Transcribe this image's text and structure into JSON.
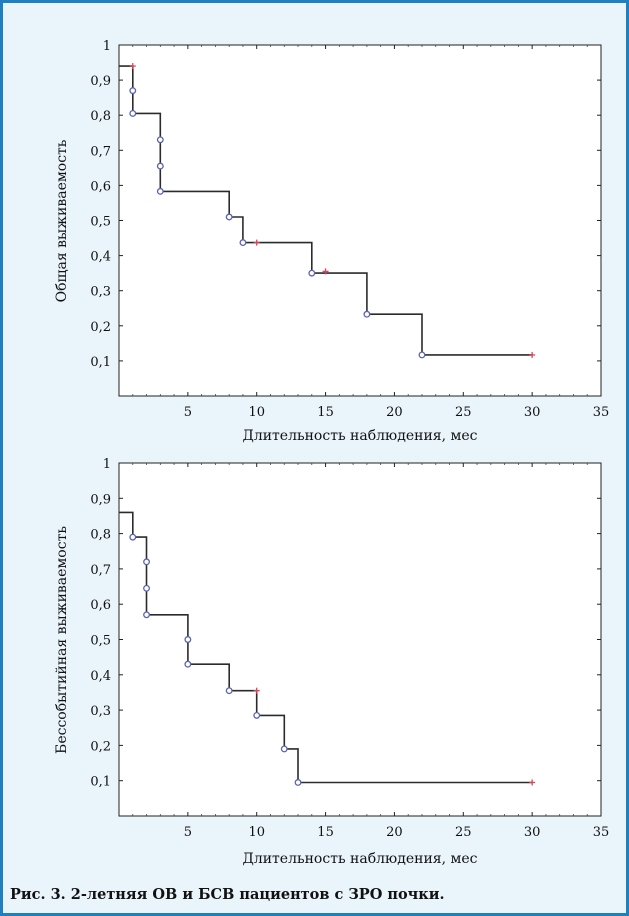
{
  "caption": "Рис. 3. 2-летняя ОВ и БСВ пациентов с ЗРО почки.",
  "colors": {
    "background": "#e9f4fb",
    "border": "#1f7fbf",
    "line": "#2b2b2b",
    "event_marker": "#5a63b0",
    "censored_marker": "#e0405a"
  },
  "chart_data": [
    {
      "type": "line",
      "subtype": "kaplan-meier-step",
      "xlabel": "Длительность наблюдения, мес",
      "ylabel": "Общая выживаемость",
      "xlim": [
        0,
        35
      ],
      "ylim": [
        0,
        1
      ],
      "x_ticks": [
        "5",
        "10",
        "15",
        "20",
        "25",
        "30",
        "35"
      ],
      "y_ticks": [
        "0,1",
        "0,2",
        "0,3",
        "0,4",
        "0,5",
        "0,6",
        "0,7",
        "0,8",
        "0,9",
        "1"
      ],
      "grid": false,
      "series": [
        {
          "steps": [
            [
              0,
              0.94
            ],
            [
              1,
              0.94
            ],
            [
              1,
              0.805
            ],
            [
              3,
              0.805
            ],
            [
              3,
              0.583
            ],
            [
              8,
              0.583
            ],
            [
              8,
              0.51
            ],
            [
              9,
              0.51
            ],
            [
              9,
              0.437
            ],
            [
              14,
              0.437
            ],
            [
              14,
              0.35
            ],
            [
              18,
              0.35
            ],
            [
              18,
              0.233
            ],
            [
              22,
              0.233
            ],
            [
              22,
              0.117
            ],
            [
              30,
              0.117
            ]
          ],
          "events": [
            [
              1,
              0.87
            ],
            [
              1,
              0.805
            ],
            [
              3,
              0.73
            ],
            [
              3,
              0.655
            ],
            [
              3,
              0.583
            ],
            [
              8,
              0.51
            ],
            [
              9,
              0.437
            ],
            [
              14,
              0.35
            ],
            [
              18,
              0.233
            ],
            [
              22,
              0.117
            ]
          ],
          "censored": [
            [
              1,
              0.94
            ],
            [
              10,
              0.437
            ],
            [
              15,
              0.355
            ],
            [
              30,
              0.117
            ]
          ]
        }
      ]
    },
    {
      "type": "line",
      "subtype": "kaplan-meier-step",
      "xlabel": "Длительность наблюдения, мес",
      "ylabel": "Бессобытийная  выживаемость",
      "xlim": [
        0,
        35
      ],
      "ylim": [
        0,
        1
      ],
      "x_ticks": [
        "5",
        "10",
        "15",
        "20",
        "25",
        "30",
        "35"
      ],
      "y_ticks": [
        "0,1",
        "0,2",
        "0,3",
        "0,4",
        "0,5",
        "0,6",
        "0,7",
        "0,8",
        "0,9",
        "1"
      ],
      "grid": false,
      "series": [
        {
          "steps": [
            [
              0,
              0.86
            ],
            [
              1,
              0.86
            ],
            [
              1,
              0.79
            ],
            [
              2,
              0.79
            ],
            [
              2,
              0.57
            ],
            [
              5,
              0.57
            ],
            [
              5,
              0.43
            ],
            [
              8,
              0.43
            ],
            [
              8,
              0.355
            ],
            [
              10,
              0.355
            ],
            [
              10,
              0.285
            ],
            [
              12,
              0.285
            ],
            [
              12,
              0.19
            ],
            [
              13,
              0.19
            ],
            [
              13,
              0.095
            ],
            [
              30,
              0.095
            ]
          ],
          "events": [
            [
              1,
              0.79
            ],
            [
              2,
              0.72
            ],
            [
              2,
              0.645
            ],
            [
              2,
              0.57
            ],
            [
              5,
              0.5
            ],
            [
              5,
              0.43
            ],
            [
              8,
              0.355
            ],
            [
              10,
              0.285
            ],
            [
              12,
              0.19
            ],
            [
              13,
              0.095
            ]
          ],
          "censored": [
            [
              10,
              0.355
            ],
            [
              30,
              0.095
            ]
          ]
        }
      ]
    }
  ]
}
